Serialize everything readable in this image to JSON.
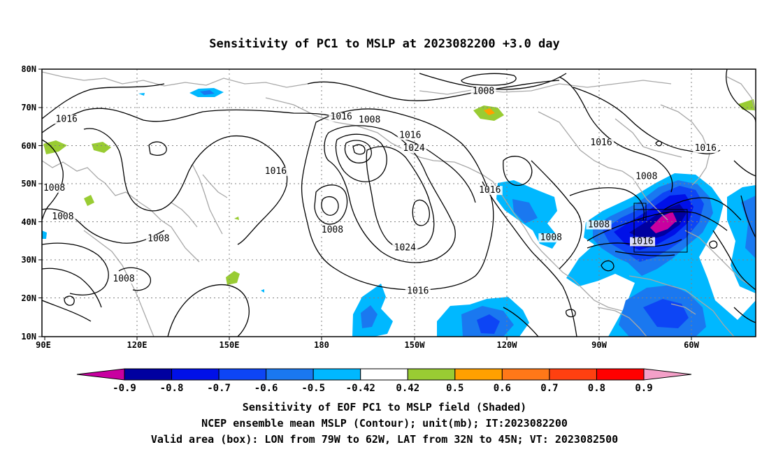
{
  "title": "Sensitivity of PC1 to MSLP at 2023082200 +3.0 day",
  "lat_ticks": [
    "80N",
    "70N",
    "60N",
    "50N",
    "40N",
    "30N",
    "20N",
    "10N"
  ],
  "lon_ticks": [
    "90E",
    "120E",
    "150E",
    "180",
    "150W",
    "120W",
    "90W",
    "60W"
  ],
  "contour_labels": [
    {
      "text": "1008",
      "lon": -126.5,
      "lat": 73.7
    },
    {
      "text": "1016",
      "lon": 98,
      "lat": 66.4
    },
    {
      "text": "1016",
      "lon": -172.7,
      "lat": 67
    },
    {
      "text": "1008",
      "lon": -163.5,
      "lat": 66.2
    },
    {
      "text": "1016",
      "lon": -150.3,
      "lat": 62.2
    },
    {
      "text": "1024",
      "lon": -149.1,
      "lat": 58.8
    },
    {
      "text": "1016",
      "lon": -88.2,
      "lat": 60.3
    },
    {
      "text": "1016",
      "lon": -54.3,
      "lat": 58.8
    },
    {
      "text": "1008",
      "lon": -73.5,
      "lat": 51.4
    },
    {
      "text": "1016",
      "lon": 166,
      "lat": 52.8
    },
    {
      "text": "1016",
      "lon": -124.4,
      "lat": 47.8
    },
    {
      "text": "1008",
      "lon": 94,
      "lat": 48.4
    },
    {
      "text": "1008",
      "lon": 96.8,
      "lat": 40.9
    },
    {
      "text": "1008",
      "lon": -89,
      "lat": 38.8
    },
    {
      "text": "1008",
      "lon": -175.6,
      "lat": 37.4
    },
    {
      "text": "1008",
      "lon": 127.9,
      "lat": 35.1
    },
    {
      "text": "1016",
      "lon": -74.8,
      "lat": 34.4
    },
    {
      "text": "1008",
      "lon": -104.5,
      "lat": 35.4
    },
    {
      "text": "1024",
      "lon": -152,
      "lat": 32.8
    },
    {
      "text": "1008",
      "lon": 116.6,
      "lat": 24.6
    },
    {
      "text": "1016",
      "lon": -147.8,
      "lat": 21.4
    }
  ],
  "colorbar": {
    "labels": [
      "-0.9",
      "-0.8",
      "-0.7",
      "-0.6",
      "-0.5",
      "-0.42",
      "0.42",
      "0.5",
      "0.6",
      "0.7",
      "0.8",
      "0.9"
    ],
    "colors": [
      "#0000a0",
      "#0010e8",
      "#0d45f5",
      "#1a78f0",
      "#00b8ff",
      "#ffffff",
      "#99cc33",
      "#ffa000",
      "#ff7818",
      "#ff4010",
      "#ff0000"
    ],
    "low_end_color": "#c800a0",
    "high_end_color": "#f4a0c8"
  },
  "captions": {
    "line1": "Sensitivity of EOF PC1 to MSLP field (Shaded)",
    "line2": "NCEP ensemble mean MSLP (Contour); unit(mb); IT:2023082200",
    "line3": "Valid area (box): LON from 79W to 62W, LAT from 32N to 45N; VT: 2023082500"
  },
  "valid_box": {
    "lon_min": -79,
    "lon_max": -62,
    "lat_min": 32,
    "lat_max": 45
  }
}
